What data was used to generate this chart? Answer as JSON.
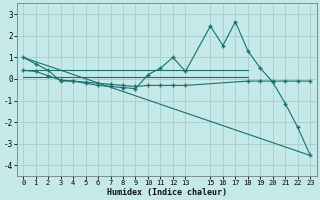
{
  "xlabel": "Humidex (Indice chaleur)",
  "x_ticks": [
    0,
    1,
    2,
    3,
    4,
    5,
    6,
    7,
    8,
    9,
    10,
    11,
    12,
    13,
    15,
    16,
    17,
    18,
    19,
    20,
    21,
    22,
    23
  ],
  "xlim": [
    -0.5,
    23.5
  ],
  "ylim": [
    -4.5,
    3.5
  ],
  "y_ticks": [
    -4,
    -3,
    -2,
    -1,
    0,
    1,
    2,
    3
  ],
  "background_color": "#c5e8e8",
  "grid_color": "#a8cdcd",
  "line_color": "#1a7070",
  "series_flat1": {
    "x": [
      0,
      13,
      18
    ],
    "y": [
      0.4,
      0.4,
      0.4
    ]
  },
  "series_flat2": {
    "x": [
      0,
      13,
      18
    ],
    "y": [
      0.1,
      0.1,
      0.1
    ]
  },
  "series_spiky": {
    "x": [
      0,
      1,
      2,
      3,
      4,
      5,
      6,
      7,
      8,
      9,
      10,
      11,
      12,
      13,
      15,
      16,
      17,
      18,
      19,
      20,
      21,
      22,
      23
    ],
    "y": [
      1.0,
      0.7,
      0.4,
      -0.1,
      -0.1,
      -0.2,
      -0.3,
      -0.35,
      -0.4,
      -0.45,
      0.2,
      0.5,
      1.0,
      0.35,
      2.45,
      1.55,
      2.65,
      1.3,
      0.5,
      -0.15,
      -1.15,
      -2.25,
      -3.55
    ]
  },
  "series_diagonal": {
    "x": [
      0,
      23
    ],
    "y": [
      1.0,
      -3.55
    ]
  },
  "series_mid": {
    "x": [
      0,
      1,
      2,
      3,
      4,
      5,
      6,
      7,
      8,
      9,
      10,
      11,
      12,
      13,
      18,
      19,
      20,
      21,
      22,
      23
    ],
    "y": [
      0.4,
      0.35,
      0.15,
      -0.05,
      -0.1,
      -0.15,
      -0.2,
      -0.25,
      -0.3,
      -0.35,
      -0.3,
      -0.3,
      -0.3,
      -0.3,
      -0.1,
      -0.1,
      -0.1,
      -0.1,
      -0.1,
      -0.1
    ]
  }
}
